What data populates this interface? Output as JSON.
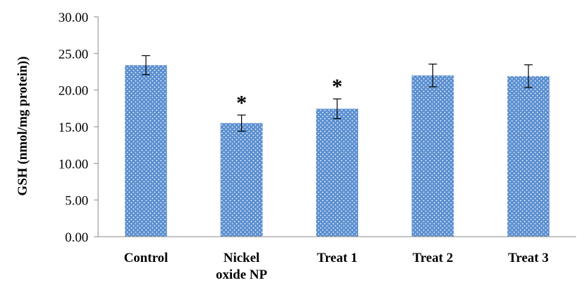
{
  "chart_data": {
    "type": "bar",
    "categories": [
      [
        "Control"
      ],
      [
        "Nickel",
        "oxide NP"
      ],
      [
        "Treat 1"
      ],
      [
        "Treat 2"
      ],
      [
        "Treat 3"
      ]
    ],
    "values": [
      23.4,
      15.5,
      17.45,
      22.0,
      21.9
    ],
    "errors": [
      1.3,
      1.1,
      1.35,
      1.55,
      1.55
    ],
    "annotations": [
      "",
      "*",
      "*",
      "",
      ""
    ],
    "ylabel": "GSH (nmol/mg protein))",
    "ylim": [
      0,
      30
    ],
    "yticks": [
      "0.00",
      "5.00",
      "10.00",
      "15.00",
      "20.00",
      "25.00",
      "30.00"
    ],
    "grid": false,
    "legend": "none",
    "bar_color": "#5b8fd0"
  }
}
